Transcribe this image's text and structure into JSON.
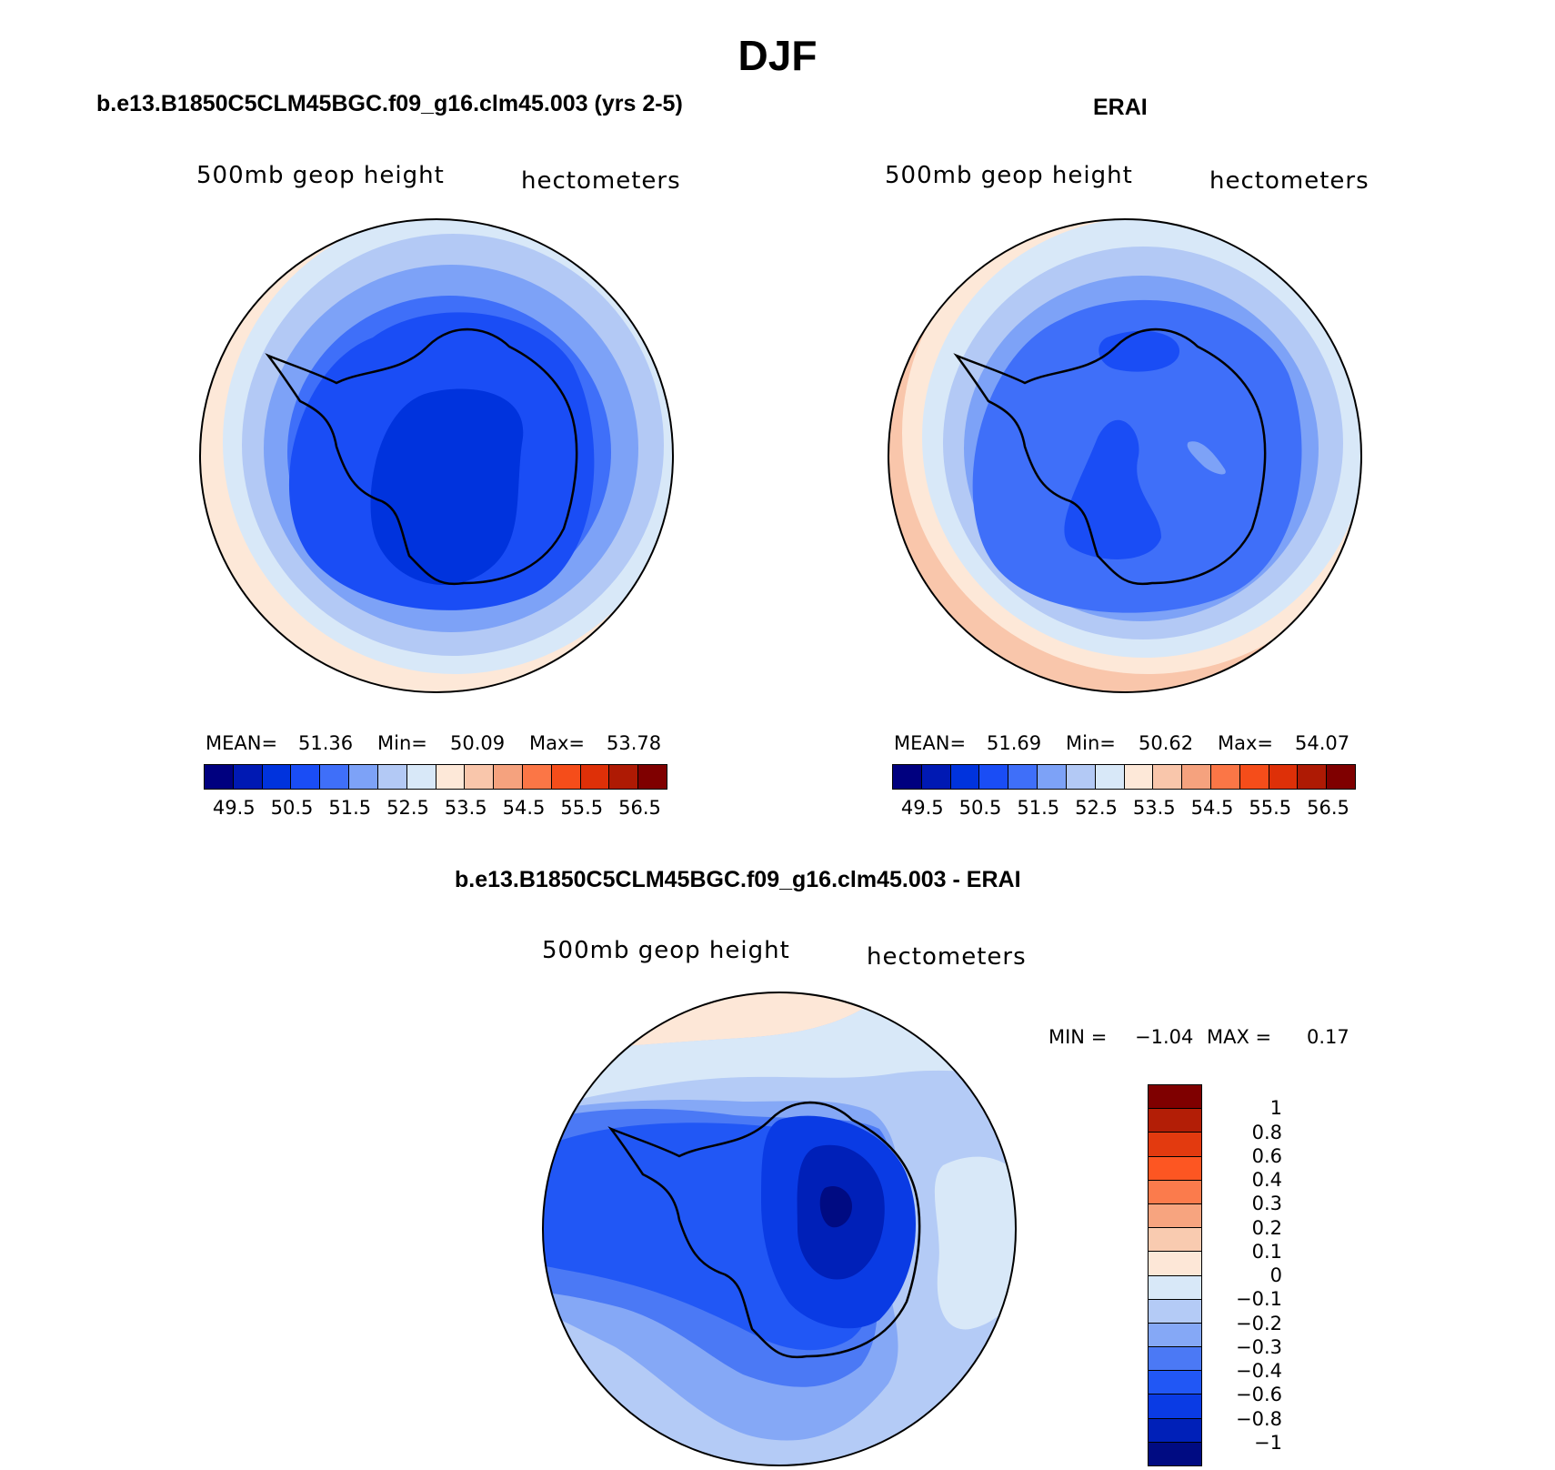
{
  "title": "DJF",
  "panels": {
    "model": {
      "title": "b.e13.B1850C5CLM45BGC.f09_g16.clm45.003 (yrs 2-5)",
      "var_label": "500mb geop height",
      "units_label": "hectometers",
      "stats": {
        "mean_label": "MEAN=",
        "mean": "51.36",
        "min_label": "Min=",
        "min": "50.09",
        "max_label": "Max=",
        "max": "53.78"
      }
    },
    "obs": {
      "title": "ERAI",
      "var_label": "500mb geop height",
      "units_label": "hectometers",
      "stats": {
        "mean_label": "MEAN=",
        "mean": "51.69",
        "min_label": "Min=",
        "min": "50.62",
        "max_label": "Max=",
        "max": "54.07"
      }
    },
    "diff": {
      "title": "b.e13.B1850C5CLM45BGC.f09_g16.clm45.003 - ERAI",
      "var_label": "500mb geop height",
      "units_label": "hectometers",
      "stats": {
        "min_label": "MIN =",
        "min": "−1.04",
        "max_label": "MAX =",
        "max": "0.17"
      }
    }
  },
  "abs_colorbar": {
    "colors": [
      "#00007f",
      "#0019b3",
      "#0033dd",
      "#1a4df5",
      "#3f6ff9",
      "#7da2f7",
      "#b3c9f5",
      "#d8e8f8",
      "#fde8d8",
      "#f9c6ab",
      "#f5a27e",
      "#fb7646",
      "#f54d1a",
      "#de3008",
      "#ae1a04",
      "#7f0000"
    ],
    "ticks": [
      "49.5",
      "50.5",
      "51.5",
      "52.5",
      "53.5",
      "54.5",
      "55.5",
      "56.5"
    ]
  },
  "diff_colorbar": {
    "colors": [
      "#7f0000",
      "#b31e06",
      "#e33a0f",
      "#fd5622",
      "#fb7b4c",
      "#f7a47f",
      "#f9cbb0",
      "#fde7d7",
      "#d8e8f8",
      "#b4cbf6",
      "#85a8f6",
      "#4b79f5",
      "#2157f5",
      "#0a3be4",
      "#0020b8",
      "#000b82"
    ],
    "ticks": [
      "1",
      "0.8",
      "0.6",
      "0.4",
      "0.3",
      "0.2",
      "0.1",
      "0",
      "−0.1",
      "−0.2",
      "−0.3",
      "−0.4",
      "−0.6",
      "−0.8",
      "−1"
    ]
  }
}
